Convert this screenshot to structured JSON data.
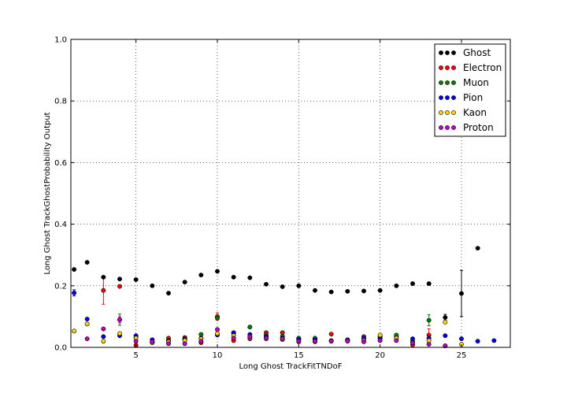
{
  "chart_data": {
    "type": "scatter",
    "title": "",
    "xlabel": "Long Ghost TrackFitTNDoF",
    "ylabel": "Long Ghost TrackGhostProbability Output",
    "xlim": [
      1,
      28
    ],
    "ylim": [
      0,
      1
    ],
    "xticks": [
      5,
      10,
      15,
      20,
      25
    ],
    "yticks": [
      0.0,
      0.2,
      0.4,
      0.6,
      0.8,
      1.0
    ],
    "xtick_labels": [
      "5",
      "10",
      "15",
      "20",
      "25"
    ],
    "ytick_labels": [
      "0.0",
      "0.2",
      "0.4",
      "0.6",
      "0.8",
      "1.0"
    ],
    "grid": true,
    "legend_position": "top-right",
    "series": [
      {
        "name": "Ghost",
        "color": "#000000",
        "x": [
          1.2,
          2,
          3,
          4,
          5,
          6,
          7,
          8,
          9,
          10,
          11,
          12,
          13,
          14,
          15,
          16,
          17,
          18,
          19,
          20,
          21,
          22,
          23,
          24,
          25,
          26
        ],
        "y": [
          0.253,
          0.276,
          0.228,
          0.222,
          0.22,
          0.2,
          0.176,
          0.212,
          0.235,
          0.247,
          0.228,
          0.226,
          0.205,
          0.197,
          0.2,
          0.185,
          0.18,
          0.182,
          0.183,
          0.185,
          0.2,
          0.207,
          0.207,
          0.097,
          0.175,
          0.322
        ],
        "yerr": [
          0.005,
          0.005,
          0.005,
          0.005,
          0.005,
          0.005,
          0.005,
          0.005,
          0.005,
          0.005,
          0.005,
          0.005,
          0.005,
          0.005,
          0.005,
          0.005,
          0.005,
          0.005,
          0.005,
          0.005,
          0.005,
          0.005,
          0.005,
          0.01,
          0.075,
          0.005
        ]
      },
      {
        "name": "Electron",
        "color": "#ff0000",
        "x": [
          3,
          4,
          5,
          6,
          7,
          8,
          9,
          10,
          11,
          12,
          13,
          14,
          15,
          16,
          17,
          18,
          19,
          20,
          21,
          22,
          23,
          24
        ],
        "y": [
          0.185,
          0.198,
          0.007,
          0.015,
          0.03,
          0.032,
          0.015,
          0.1,
          0.022,
          0.028,
          0.048,
          0.048,
          0.028,
          0.028,
          0.043,
          0.022,
          0.035,
          0.03,
          0.035,
          0.008,
          0.04,
          0.005
        ],
        "yerr": [
          0.045,
          0.003,
          0.002,
          0.003,
          0.003,
          0.003,
          0.003,
          0.012,
          0.003,
          0.003,
          0.003,
          0.003,
          0.003,
          0.003,
          0.003,
          0.003,
          0.003,
          0.003,
          0.003,
          0.003,
          0.02,
          0.002
        ]
      },
      {
        "name": "Muon",
        "color": "#008000",
        "x": [
          4,
          5,
          6,
          7,
          8,
          9,
          10,
          11,
          12,
          13,
          14,
          15,
          16,
          17,
          18,
          19,
          20,
          21,
          22,
          23
        ],
        "y": [
          0.09,
          0.032,
          0.018,
          0.022,
          0.028,
          0.042,
          0.095,
          0.046,
          0.066,
          0.04,
          0.036,
          0.03,
          0.03,
          0.02,
          0.022,
          0.028,
          0.035,
          0.04,
          0.02,
          0.088
        ],
        "yerr": [
          0.018,
          0.003,
          0.003,
          0.003,
          0.003,
          0.003,
          0.006,
          0.003,
          0.004,
          0.003,
          0.003,
          0.003,
          0.003,
          0.003,
          0.003,
          0.003,
          0.003,
          0.003,
          0.003,
          0.018
        ]
      },
      {
        "name": "Pion",
        "color": "#0000ff",
        "x": [
          1.2,
          2,
          3,
          4,
          5,
          6,
          7,
          8,
          9,
          10,
          11,
          12,
          13,
          14,
          15,
          16,
          17,
          18,
          19,
          20,
          21,
          22,
          23,
          24,
          25,
          26,
          27
        ],
        "y": [
          0.177,
          0.092,
          0.035,
          0.038,
          0.038,
          0.025,
          0.02,
          0.025,
          0.03,
          0.04,
          0.048,
          0.042,
          0.035,
          0.03,
          0.025,
          0.025,
          0.022,
          0.025,
          0.03,
          0.03,
          0.03,
          0.028,
          0.03,
          0.038,
          0.028,
          0.02,
          0.022
        ],
        "yerr": [
          0.01,
          0.003,
          0.003,
          0.003,
          0.003,
          0.003,
          0.003,
          0.003,
          0.003,
          0.003,
          0.003,
          0.003,
          0.003,
          0.003,
          0.003,
          0.003,
          0.003,
          0.003,
          0.003,
          0.003,
          0.003,
          0.003,
          0.003,
          0.003,
          0.003,
          0.003,
          0.003
        ]
      },
      {
        "name": "Kaon",
        "color": "#ffd700",
        "x": [
          1.2,
          2,
          3,
          4,
          5,
          6,
          7,
          8,
          9,
          10,
          11,
          12,
          13,
          14,
          15,
          16,
          17,
          18,
          19,
          20,
          21,
          22,
          23,
          24,
          25
        ],
        "y": [
          0.053,
          0.076,
          0.02,
          0.045,
          0.03,
          0.015,
          0.018,
          0.022,
          0.028,
          0.045,
          0.038,
          0.032,
          0.028,
          0.025,
          0.018,
          0.018,
          0.02,
          0.022,
          0.022,
          0.04,
          0.03,
          0.015,
          0.022,
          0.082,
          0.01
        ],
        "yerr": [
          0.003,
          0.006,
          0.003,
          0.003,
          0.003,
          0.003,
          0.003,
          0.003,
          0.003,
          0.003,
          0.003,
          0.003,
          0.003,
          0.003,
          0.003,
          0.003,
          0.003,
          0.003,
          0.003,
          0.003,
          0.003,
          0.003,
          0.003,
          0.006,
          0.005
        ]
      },
      {
        "name": "Proton",
        "color": "#bf00bf",
        "x": [
          2,
          3,
          4,
          5,
          6,
          7,
          8,
          9,
          10,
          11,
          12,
          13,
          14,
          15,
          16,
          17,
          18,
          19,
          20,
          21,
          22,
          23,
          24
        ],
        "y": [
          0.028,
          0.06,
          0.09,
          0.02,
          0.018,
          0.012,
          0.012,
          0.02,
          0.058,
          0.03,
          0.035,
          0.03,
          0.028,
          0.02,
          0.02,
          0.02,
          0.02,
          0.018,
          0.022,
          0.022,
          0.015,
          0.01,
          0.005
        ],
        "yerr": [
          0.003,
          0.003,
          0.01,
          0.003,
          0.003,
          0.003,
          0.003,
          0.003,
          0.005,
          0.003,
          0.003,
          0.003,
          0.003,
          0.003,
          0.003,
          0.003,
          0.003,
          0.003,
          0.003,
          0.003,
          0.003,
          0.003,
          0.002
        ]
      }
    ]
  }
}
